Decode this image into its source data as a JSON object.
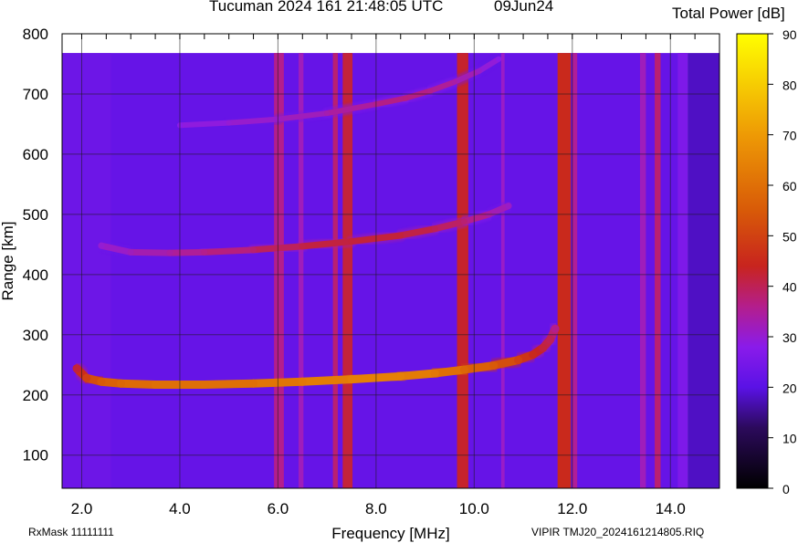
{
  "header": {
    "station_time": "Tucuman 2024 161 21:48:05 UTC",
    "date": "09Jun24",
    "colorbar_title": "Total Power [dB]"
  },
  "footer": {
    "rxmask": "RxMask 11111111",
    "filename": "VIPIR  TMJ20_2024161214805.RIQ"
  },
  "chart_data": {
    "type": "heatmap",
    "title": "Tucuman 2024 161 21:48:05 UTC",
    "subtitle": "09Jun24",
    "xlabel": "Frequency [MHz]",
    "ylabel": "Range [km]",
    "xlim": [
      1.6,
      15.0
    ],
    "ylim": [
      45,
      800
    ],
    "x_ticks": [
      2.0,
      4.0,
      6.0,
      8.0,
      10.0,
      12.0,
      14.0
    ],
    "x_tick_labels": [
      "2.0",
      "4.0",
      "6.0",
      "8.0",
      "10.0",
      "12.0",
      "14.0"
    ],
    "y_ticks": [
      100,
      200,
      300,
      400,
      500,
      600,
      700,
      800
    ],
    "y_tick_labels": [
      "100",
      "200",
      "300",
      "400",
      "500",
      "600",
      "700",
      "800"
    ],
    "data_top_km": 768,
    "data_right_mhz": 14.35,
    "colorbar": {
      "label": "Total Power [dB]",
      "range": [
        0,
        90
      ],
      "ticks": [
        0,
        10,
        20,
        30,
        40,
        50,
        60,
        70,
        80,
        90
      ],
      "stops": [
        {
          "db": 0,
          "color": "#000000"
        },
        {
          "db": 12,
          "color": "#2c0a5c"
        },
        {
          "db": 20,
          "color": "#5a12e6"
        },
        {
          "db": 28,
          "color": "#8a1bea"
        },
        {
          "db": 36,
          "color": "#b41e8c"
        },
        {
          "db": 44,
          "color": "#c8241e"
        },
        {
          "db": 55,
          "color": "#d85a08"
        },
        {
          "db": 70,
          "color": "#ee9a05"
        },
        {
          "db": 90,
          "color": "#ffff00"
        }
      ]
    },
    "background_db": 22,
    "interference_bands": [
      {
        "freq": [
          5.92,
          6.12
        ],
        "db": 36
      },
      {
        "freq": [
          6.42,
          6.52
        ],
        "db": 32
      },
      {
        "freq": [
          7.12,
          7.22
        ],
        "db": 38
      },
      {
        "freq": [
          7.32,
          7.52
        ],
        "db": 42
      },
      {
        "freq": [
          9.65,
          9.88
        ],
        "db": 43
      },
      {
        "freq": [
          10.55,
          10.62
        ],
        "db": 31
      },
      {
        "freq": [
          11.7,
          11.97
        ],
        "db": 45
      },
      {
        "freq": [
          12.0,
          12.1
        ],
        "db": 35
      },
      {
        "freq": [
          13.38,
          13.5
        ],
        "db": 32
      },
      {
        "freq": [
          13.68,
          13.8
        ],
        "db": 38
      },
      {
        "freq": [
          14.15,
          14.35
        ],
        "db": 26
      }
    ],
    "series": [
      {
        "name": "F-layer trace",
        "x": [
          1.9,
          2.1,
          2.4,
          2.8,
          3.5,
          4.5,
          5.5,
          6.5,
          7.5,
          8.5,
          9.2,
          9.8,
          10.4,
          10.9,
          11.2,
          11.4,
          11.55,
          11.65
        ],
        "y": [
          244,
          228,
          222,
          219,
          217,
          217,
          219,
          222,
          226,
          231,
          236,
          242,
          249,
          258,
          267,
          278,
          292,
          310
        ],
        "db": [
          42,
          50,
          55,
          58,
          60,
          60,
          60,
          62,
          64,
          64,
          62,
          58,
          55,
          50,
          45,
          42,
          40,
          36
        ]
      },
      {
        "name": "F-layer trace second hop",
        "x": [
          2.4,
          3.0,
          3.8,
          4.5,
          5.5,
          6.5,
          7.5,
          8.5,
          9.2,
          9.8,
          10.3,
          10.7
        ],
        "y": [
          448,
          437,
          436,
          437,
          441,
          447,
          455,
          465,
          476,
          488,
          500,
          514
        ],
        "db": [
          30,
          32,
          34,
          36,
          38,
          41,
          42,
          42,
          40,
          38,
          34,
          31
        ]
      },
      {
        "name": "F-layer trace third hop",
        "x": [
          4.0,
          5.0,
          6.0,
          7.0,
          8.0,
          8.6,
          9.1,
          9.6,
          10.1,
          10.5
        ],
        "y": [
          648,
          652,
          658,
          668,
          683,
          693,
          705,
          720,
          738,
          758
        ],
        "db": [
          28,
          30,
          31,
          33,
          36,
          37,
          36,
          34,
          31,
          28
        ]
      }
    ]
  }
}
